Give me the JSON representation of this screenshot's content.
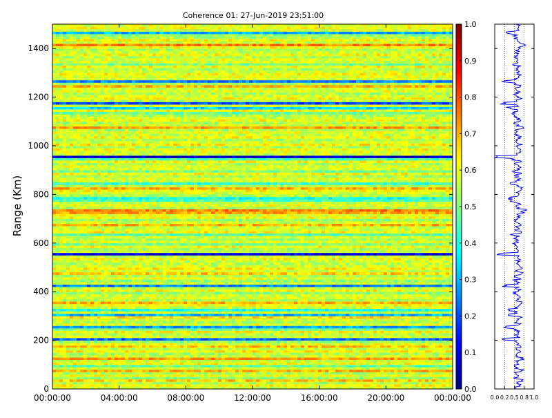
{
  "chart_data": [
    {
      "type": "heatmap",
      "title": "Coherence 01: 27-Jun-2019 23:51:00",
      "ylabel": "Range (Km)",
      "xlabel": "",
      "x_ticks": [
        "00:00:00",
        "04:00:00",
        "08:00:00",
        "12:00:00",
        "16:00:00",
        "20:00:00",
        "00:00:00"
      ],
      "y_ticks": [
        0,
        200,
        400,
        600,
        800,
        1000,
        1200,
        1400
      ],
      "ylim": [
        0,
        1500
      ],
      "xlim_hours": [
        0,
        24
      ],
      "colormap": "jet",
      "colorbar": {
        "ticks": [
          "0.0",
          "0.1",
          "0.2",
          "0.3",
          "0.4",
          "0.5",
          "0.6",
          "0.7",
          "0.8",
          "0.9",
          "1.0"
        ],
        "range": [
          0,
          1
        ]
      },
      "range_bins_km": [
        0,
        10,
        20,
        30,
        40,
        50,
        60,
        70,
        80,
        90,
        100,
        110,
        120,
        130,
        140,
        150,
        160,
        170,
        180,
        190,
        200,
        210,
        220,
        230,
        240,
        250,
        260,
        270,
        280,
        290,
        300,
        310,
        320,
        330,
        340,
        350,
        360,
        370,
        380,
        390,
        400,
        410,
        420,
        430,
        440,
        450,
        460,
        470,
        480,
        490,
        500,
        510,
        520,
        530,
        540,
        550,
        560,
        570,
        580,
        590,
        600,
        610,
        620,
        630,
        640,
        650,
        660,
        670,
        680,
        690,
        700,
        710,
        720,
        730,
        740,
        750,
        760,
        770,
        780,
        790,
        800,
        810,
        820,
        830,
        840,
        850,
        860,
        870,
        880,
        890,
        900,
        910,
        920,
        930,
        940,
        950,
        960,
        970,
        980,
        990,
        1000,
        1010,
        1020,
        1030,
        1040,
        1050,
        1060,
        1070,
        1080,
        1090,
        1100,
        1110,
        1120,
        1130,
        1140,
        1150,
        1160,
        1170,
        1180,
        1190,
        1200,
        1210,
        1220,
        1230,
        1240,
        1250,
        1260,
        1270,
        1280,
        1290,
        1300,
        1310,
        1320,
        1330,
        1340,
        1350,
        1360,
        1370,
        1380,
        1390,
        1400,
        1410,
        1420,
        1430,
        1440,
        1450,
        1460,
        1470,
        1480,
        1490
      ],
      "mean_coherence_profile": [
        0.58,
        0.62,
        0.55,
        0.68,
        0.52,
        0.6,
        0.56,
        0.7,
        0.58,
        0.48,
        0.62,
        0.57,
        0.72,
        0.58,
        0.55,
        0.63,
        0.57,
        0.68,
        0.6,
        0.52,
        0.22,
        0.58,
        0.55,
        0.62,
        0.5,
        0.28,
        0.6,
        0.55,
        0.58,
        0.65,
        0.3,
        0.58,
        0.4,
        0.57,
        0.62,
        0.7,
        0.55,
        0.6,
        0.58,
        0.52,
        0.62,
        0.56,
        0.25,
        0.58,
        0.52,
        0.6,
        0.55,
        0.68,
        0.58,
        0.63,
        0.58,
        0.56,
        0.58,
        0.62,
        0.57,
        0.1,
        0.58,
        0.55,
        0.62,
        0.5,
        0.6,
        0.55,
        0.58,
        0.45,
        0.62,
        0.58,
        0.57,
        0.7,
        0.58,
        0.52,
        0.62,
        0.6,
        0.72,
        0.75,
        0.55,
        0.6,
        0.58,
        0.45,
        0.4,
        0.55,
        0.58,
        0.62,
        0.7,
        0.55,
        0.42,
        0.58,
        0.6,
        0.55,
        0.62,
        0.5,
        0.58,
        0.6,
        0.55,
        0.62,
        0.45,
        0.08,
        0.58,
        0.6,
        0.62,
        0.55,
        0.64,
        0.58,
        0.55,
        0.62,
        0.58,
        0.6,
        0.55,
        0.72,
        0.58,
        0.55,
        0.62,
        0.58,
        0.55,
        0.48,
        0.62,
        0.35,
        0.58,
        0.2,
        0.55,
        0.62,
        0.58,
        0.55,
        0.6,
        0.58,
        0.7,
        0.55,
        0.25,
        0.58,
        0.6,
        0.62,
        0.58,
        0.55,
        0.62,
        0.5,
        0.58,
        0.6,
        0.56,
        0.62,
        0.58,
        0.55,
        0.62,
        0.75,
        0.58,
        0.62,
        0.55,
        0.52,
        0.3,
        0.58,
        0.62,
        0.6
      ],
      "profile_x_ticks": [
        "0.0",
        "0.2",
        "0.5",
        "0.8",
        "1.0"
      ],
      "profile_xlim": [
        0,
        1
      ]
    }
  ]
}
